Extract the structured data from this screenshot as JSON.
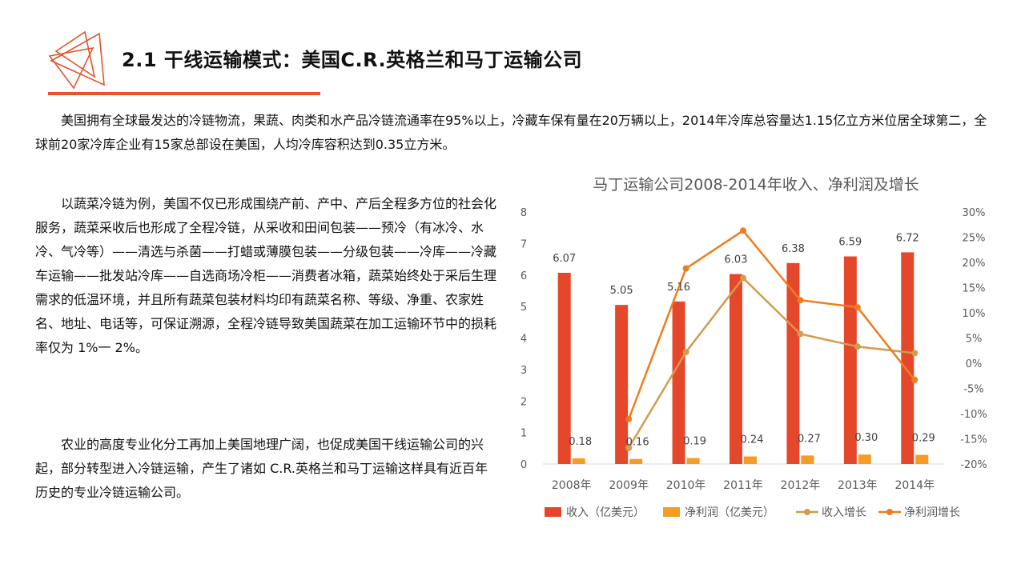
{
  "title": "2.1 干线运输模式：美国C.R.英格兰和马丁运输公司",
  "colors": {
    "accent": "#e5542b",
    "bar1": "#e5472a",
    "bar2": "#f49c23",
    "line1": "#d39b4c",
    "line2": "#ef7d1f"
  },
  "paragraphs": {
    "p1": "美国拥有全球最发达的冷链物流，果蔬、肉类和水产品冷链流通率在95%以上，冷藏车保有量在20万辆以上，2014年冷库总容量达1.15亿立方米位居全球第二，全球前20家冷库企业有15家总部设在美国，人均冷库容积达到0.35立方米。",
    "p2": "以蔬菜冷链为例，美国不仅已形成围绕产前、产中、产后全程多方位的社会化服务，蔬菜采收后也形成了全程冷链，从采收和田间包装——预冷（有冰冷、水冷、气冷等）——清选与杀菌——打蜡或薄膜包装——分级包装——冷库——冷藏车运输——批发站冷库——自选商场冷柜——消费者冰箱，蔬菜始终处于采后生理需求的低温环境，并且所有蔬菜包装材料均印有蔬菜名称、等级、净重、农家姓名、地址、电话等，可保证溯源，全程冷链导致美国蔬菜在加工运输环节中的损耗率仅为 1%一 2%。",
    "p3": "农业的高度专业化分工再加上美国地理广阔，也促成美国干线运输公司的兴起，部分转型进入冷链运输，产生了诸如 C.R.英格兰和马丁运输这样具有近百年历史的专业冷链运输公司。"
  },
  "chart_data": {
    "type": "bar",
    "title": "马丁运输公司2008-2014年收入、净利润及增长",
    "categories": [
      "2008年",
      "2009年",
      "2010年",
      "2011年",
      "2012年",
      "2013年",
      "2014年"
    ],
    "series": [
      {
        "name": "收入（亿美元）",
        "kind": "bar",
        "axis": "left",
        "values": [
          6.07,
          5.05,
          5.16,
          6.03,
          6.38,
          6.59,
          6.72
        ]
      },
      {
        "name": "净利润（亿美元）",
        "kind": "bar",
        "axis": "left",
        "values": [
          0.18,
          0.16,
          0.19,
          0.24,
          0.27,
          0.3,
          0.29
        ]
      },
      {
        "name": "收入增长",
        "kind": "line",
        "axis": "right",
        "values": [
          null,
          -16.8,
          2.2,
          16.9,
          5.8,
          3.3,
          2.0
        ]
      },
      {
        "name": "净利润增长",
        "kind": "line",
        "axis": "right",
        "values": [
          null,
          -11.1,
          18.8,
          26.3,
          12.5,
          11.1,
          -3.3
        ]
      }
    ],
    "data_labels": {
      "revenue": [
        "6.07",
        "5.05",
        "5.16",
        "6.03",
        "6.38",
        "6.59",
        "6.72"
      ],
      "profit": [
        "0.18",
        "0.16",
        "0.19",
        "0.24",
        "0.27",
        "0.30",
        "0.29"
      ]
    },
    "ylim_left": [
      0,
      8
    ],
    "yticks_left": [
      "0",
      "1",
      "2",
      "3",
      "4",
      "5",
      "6",
      "7",
      "8"
    ],
    "ylim_right": [
      -20,
      30
    ],
    "yticks_right": [
      "-20%",
      "-15%",
      "-10%",
      "-5%",
      "0%",
      "5%",
      "10%",
      "15%",
      "20%",
      "25%",
      "30%"
    ],
    "grid": false,
    "legend_position": "bottom"
  }
}
